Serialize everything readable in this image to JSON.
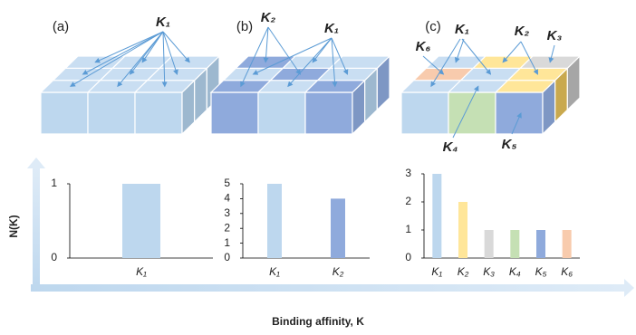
{
  "chart_data": [
    {
      "type": "bar",
      "categories": [
        "K₁"
      ],
      "values": [
        1
      ],
      "colors": [
        "#bdd7ee"
      ],
      "ylim": [
        0,
        1
      ],
      "yticks": [
        0,
        1
      ]
    },
    {
      "type": "bar",
      "categories": [
        "K₁",
        "K₂"
      ],
      "values": [
        5,
        4
      ],
      "colors": [
        "#bdd7ee",
        "#8faadc"
      ],
      "ylim": [
        0,
        5
      ],
      "yticks": [
        0,
        1,
        2,
        3,
        4,
        5
      ]
    },
    {
      "type": "bar",
      "categories": [
        "K₁",
        "K₂",
        "K₃",
        "K₄",
        "K₅",
        "K₆"
      ],
      "values": [
        3,
        2,
        1,
        1,
        1,
        1
      ],
      "colors": [
        "#bdd7ee",
        "#ffe699",
        "#d9d9d9",
        "#c5e0b4",
        "#8faadc",
        "#f8cbad"
      ],
      "ylim": [
        0,
        3
      ],
      "yticks": [
        0,
        1,
        2,
        3
      ]
    }
  ],
  "y_axis_label": "N(K)",
  "x_axis_label": "Binding affinity, K",
  "diagram": {
    "panels": [
      {
        "label": "(a)",
        "annotations": [
          "K₁"
        ]
      },
      {
        "label": "(b)",
        "annotations": [
          "K₂",
          "K₁"
        ]
      },
      {
        "label": "(c)",
        "annotations": [
          "K₁",
          "K₂",
          "K₃",
          "K₆",
          "K₄",
          "K₅"
        ]
      }
    ]
  }
}
